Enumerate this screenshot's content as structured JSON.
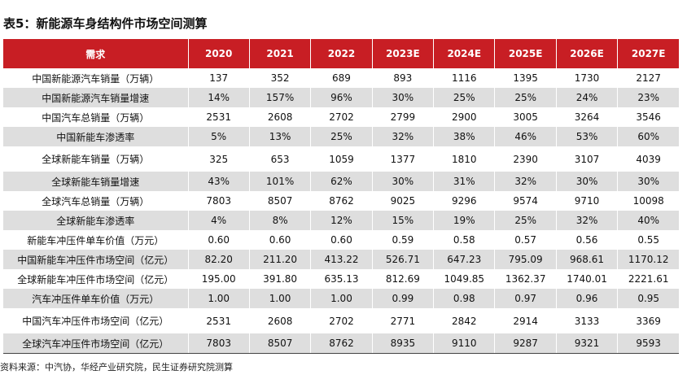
{
  "title": "表5：新能源车身结构件市场空间测算",
  "header": [
    "需求",
    "2020",
    "2021",
    "2022",
    "2023E",
    "2024E",
    "2025E",
    "2026E",
    "2027E"
  ],
  "rows": [
    {
      "label": "中国新能源汽车销量（万辆）",
      "values": [
        "137",
        "352",
        "689",
        "893",
        "1116",
        "1395",
        "1730",
        "2127"
      ],
      "tall": false
    },
    {
      "label": "中国新能源汽车销量增速",
      "values": [
        "14%",
        "157%",
        "96%",
        "30%",
        "25%",
        "25%",
        "24%",
        "23%"
      ],
      "tall": false
    },
    {
      "label": "中国汽车总销量（万辆）",
      "values": [
        "2531",
        "2608",
        "2702",
        "2799",
        "2900",
        "3005",
        "3264",
        "3546"
      ],
      "tall": false
    },
    {
      "label": "中国新能车渗透率",
      "values": [
        "5%",
        "13%",
        "25%",
        "32%",
        "38%",
        "46%",
        "53%",
        "60%"
      ],
      "tall": false
    },
    {
      "label": "全球新能车销量（万辆）",
      "values": [
        "325",
        "653",
        "1059",
        "1377",
        "1810",
        "2390",
        "3107",
        "4039"
      ],
      "tall": true
    },
    {
      "label": "全球新能车销量增速",
      "values": [
        "43%",
        "101%",
        "62%",
        "30%",
        "31%",
        "32%",
        "30%",
        "30%"
      ],
      "tall": false
    },
    {
      "label": "全球汽车总销量（万辆）",
      "values": [
        "7803",
        "8507",
        "8762",
        "9025",
        "9296",
        "9574",
        "9710",
        "10098"
      ],
      "tall": false
    },
    {
      "label": "全球新能车渗透率",
      "values": [
        "4%",
        "8%",
        "12%",
        "15%",
        "19%",
        "25%",
        "32%",
        "40%"
      ],
      "tall": false
    },
    {
      "label": "新能车冲压件单车价值（万元）",
      "values": [
        "0.60",
        "0.60",
        "0.60",
        "0.59",
        "0.58",
        "0.57",
        "0.56",
        "0.55"
      ],
      "tall": false
    },
    {
      "label": "中国新能车冲压件市场空间（亿元）",
      "values": [
        "82.20",
        "211.20",
        "413.22",
        "526.71",
        "647.23",
        "795.09",
        "968.61",
        "1170.12"
      ],
      "tall": false
    },
    {
      "label": "全球新能车冲压件市场空间（亿元）",
      "values": [
        "195.00",
        "391.80",
        "635.13",
        "812.69",
        "1049.85",
        "1362.37",
        "1740.01",
        "2221.61"
      ],
      "tall": false
    },
    {
      "label": "汽车冲压件单车价值（万元）",
      "values": [
        "1.00",
        "1.00",
        "1.00",
        "0.99",
        "0.98",
        "0.97",
        "0.96",
        "0.95"
      ],
      "tall": false
    },
    {
      "label": "中国汽车冲压件市场空间（亿元）",
      "values": [
        "2531",
        "2608",
        "2702",
        "2771",
        "2842",
        "2914",
        "3133",
        "3369"
      ],
      "tall": true
    },
    {
      "label": "全球汽车冲压件市场空间（亿元）",
      "values": [
        "7803",
        "8507",
        "8762",
        "8935",
        "9110",
        "9287",
        "9321",
        "9593"
      ],
      "tall": false
    }
  ],
  "source": "资料来源：中汽协，华经产业研究院，民生证券研究院测算"
}
